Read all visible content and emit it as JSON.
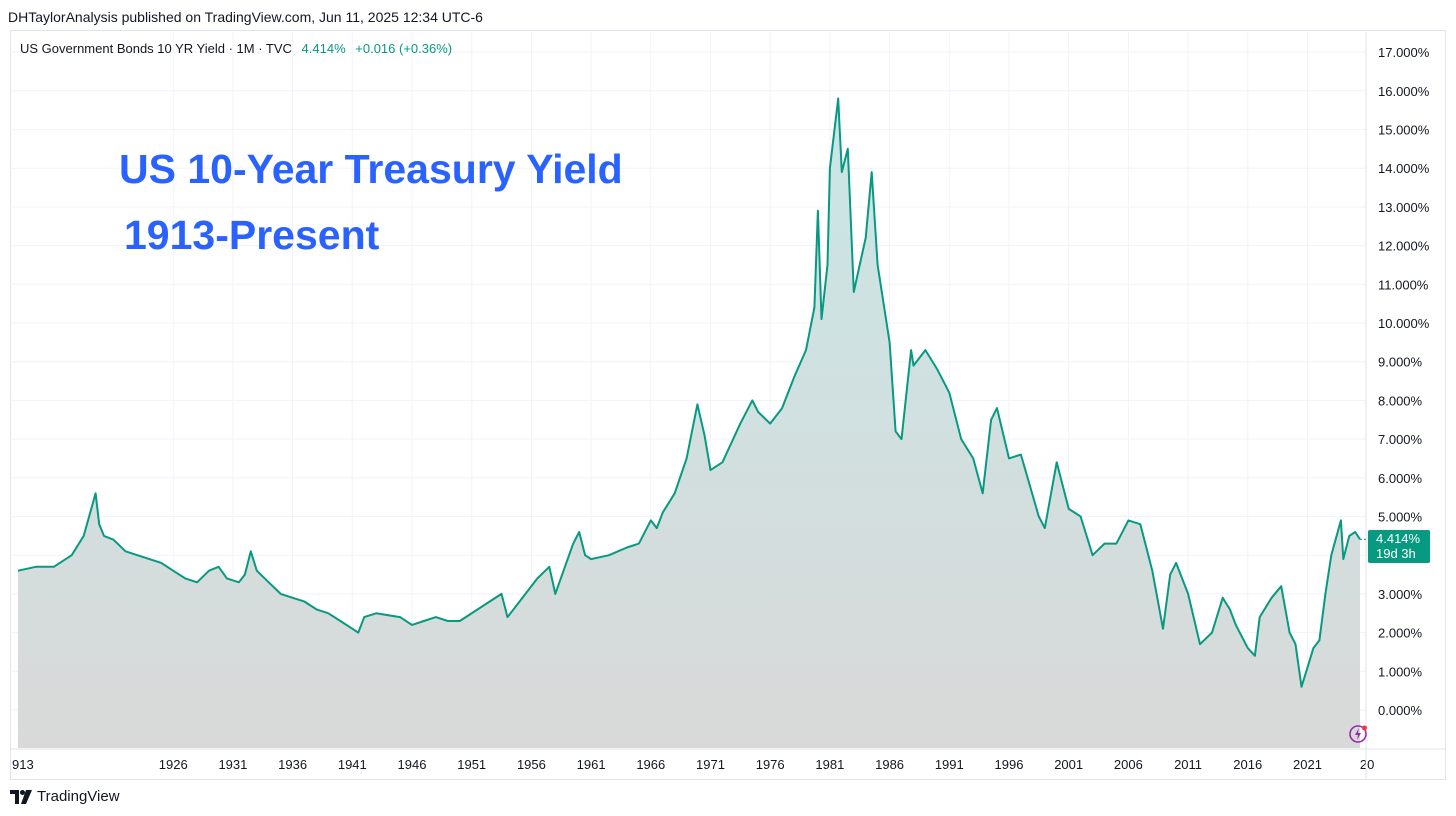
{
  "header": {
    "published_text": "DHTaylorAnalysis published on TradingView.com, Jun 11, 2025 12:34 UTC-6"
  },
  "legend": {
    "symbol": "US Government Bonds 10 YR Yield · 1M · TVC",
    "value": "4.414%",
    "change": "+0.016 (+0.36%)"
  },
  "overlay": {
    "title": "US 10-Year Treasury Yield",
    "subtitle": "1913-Present"
  },
  "price_tag": {
    "value": "4.414%",
    "countdown": "19d 3h"
  },
  "branding": {
    "logo_text": "TradingView"
  },
  "colors": {
    "line": "#089981",
    "area_top": "#c9e6e6",
    "area_bottom": "#d9d9d9",
    "title": "#2962ff",
    "grid": "#f0f3fa"
  },
  "chart_data": {
    "type": "area",
    "title": "",
    "xlabel": "",
    "ylabel": "",
    "x_tick_labels": [
      "913",
      "1926",
      "1931",
      "1936",
      "1941",
      "1946",
      "1951",
      "1956",
      "1961",
      "1966",
      "1971",
      "1976",
      "1981",
      "1986",
      "1991",
      "1996",
      "2001",
      "2006",
      "2011",
      "2016",
      "2021",
      "20"
    ],
    "y_tick_labels": [
      "0.000%",
      "1.000%",
      "2.000%",
      "3.000%",
      "4.000%",
      "5.000%",
      "6.000%",
      "7.000%",
      "8.000%",
      "9.000%",
      "10.000%",
      "11.000%",
      "12.000%",
      "13.000%",
      "14.000%",
      "15.000%",
      "16.000%",
      "17.000%"
    ],
    "ylim": [
      -1,
      17.5
    ],
    "xlim": [
      1913,
      2027
    ],
    "grid": true,
    "legend_position": "top-left",
    "series": [
      {
        "x": [
          1913.0,
          1914.5,
          1916.0,
          1917.5,
          1918.5,
          1919.5,
          1919.8,
          1920.2,
          1921.0,
          1922.0,
          1923.0,
          1924.0,
          1925.0,
          1926.0,
          1927.0,
          1928.0,
          1929.0,
          1929.8,
          1930.5,
          1931.5,
          1932.0,
          1932.5,
          1933.0,
          1934.0,
          1935.0,
          1936.0,
          1937.0,
          1938.0,
          1939.0,
          1940.0,
          1941.0,
          1941.5,
          1942.0,
          1943.0,
          1945.0,
          1946.0,
          1947.0,
          1948.0,
          1949.0,
          1950.0,
          1952.0,
          1953.5,
          1954.0,
          1955.0,
          1956.5,
          1957.5,
          1958.0,
          1959.5,
          1960.0,
          1960.5,
          1961.0,
          1962.5,
          1964.0,
          1965.0,
          1966.0,
          1966.5,
          1967.0,
          1968.0,
          1969.0,
          1969.9,
          1970.5,
          1971.0,
          1972.0,
          1973.5,
          1974.5,
          1975.0,
          1976.0,
          1977.0,
          1978.0,
          1979.0,
          1979.7,
          1980.0,
          1980.3,
          1980.8,
          1981.0,
          1981.7,
          1982.0,
          1982.5,
          1983.0,
          1983.5,
          1984.0,
          1984.5,
          1985.0,
          1986.0,
          1986.5,
          1987.0,
          1987.8,
          1988.0,
          1989.0,
          1990.0,
          1991.0,
          1992.0,
          1993.0,
          1993.8,
          1994.5,
          1995.0,
          1996.0,
          1997.0,
          1998.5,
          1999.0,
          2000.0,
          2001.0,
          2002.0,
          2003.0,
          2004.0,
          2005.0,
          2006.0,
          2007.0,
          2008.0,
          2008.9,
          2009.5,
          2010.0,
          2011.0,
          2012.0,
          2013.0,
          2013.9,
          2014.5,
          2015.0,
          2016.0,
          2016.6,
          2017.0,
          2018.0,
          2018.8,
          2019.5,
          2020.0,
          2020.5,
          2021.0,
          2021.5,
          2022.0,
          2022.5,
          2023.0,
          2023.8,
          2024.0,
          2024.5,
          2025.0,
          2025.4
        ],
        "y": [
          3.6,
          3.7,
          3.7,
          4.0,
          4.5,
          5.6,
          4.8,
          4.5,
          4.4,
          4.1,
          4.0,
          3.9,
          3.8,
          3.6,
          3.4,
          3.3,
          3.6,
          3.7,
          3.4,
          3.3,
          3.5,
          4.1,
          3.6,
          3.3,
          3.0,
          2.9,
          2.8,
          2.6,
          2.5,
          2.3,
          2.1,
          2.0,
          2.4,
          2.5,
          2.4,
          2.2,
          2.3,
          2.4,
          2.3,
          2.3,
          2.7,
          3.0,
          2.4,
          2.8,
          3.4,
          3.7,
          3.0,
          4.3,
          4.6,
          4.0,
          3.9,
          4.0,
          4.2,
          4.3,
          4.9,
          4.7,
          5.1,
          5.6,
          6.5,
          7.9,
          7.1,
          6.2,
          6.4,
          7.4,
          8.0,
          7.7,
          7.4,
          7.8,
          8.6,
          9.3,
          10.4,
          12.9,
          10.1,
          11.5,
          14.0,
          15.8,
          13.9,
          14.5,
          10.8,
          11.5,
          12.2,
          13.9,
          11.5,
          9.5,
          7.2,
          7.0,
          9.3,
          8.9,
          9.3,
          8.8,
          8.2,
          7.0,
          6.5,
          5.6,
          7.5,
          7.8,
          6.5,
          6.6,
          5.0,
          4.7,
          6.4,
          5.2,
          5.0,
          4.0,
          4.3,
          4.3,
          4.9,
          4.8,
          3.6,
          2.1,
          3.5,
          3.8,
          3.0,
          1.7,
          2.0,
          2.9,
          2.6,
          2.2,
          1.6,
          1.4,
          2.4,
          2.9,
          3.2,
          2.0,
          1.7,
          0.6,
          1.1,
          1.6,
          1.8,
          3.0,
          4.0,
          4.9,
          3.9,
          4.5,
          4.6,
          4.41
        ]
      }
    ]
  }
}
